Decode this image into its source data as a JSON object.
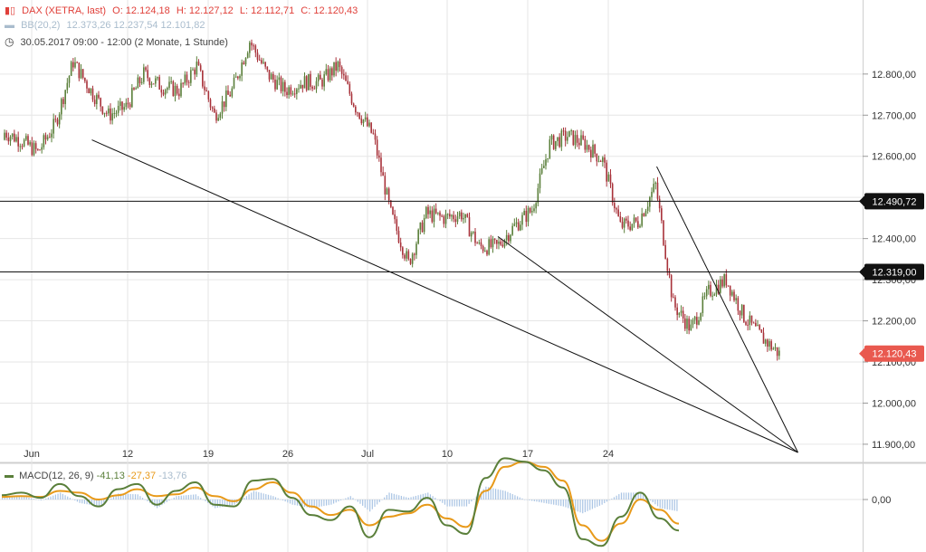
{
  "header": {
    "icon": "candlestick-icon",
    "instrument": "DAX (XETRA, last)",
    "open": "O: 12.124,18",
    "high": "H: 12.127,12",
    "low": "L: 12.112,71",
    "close": "C: 12.120,43",
    "bb_label": "BB(20,2)",
    "bb_values": "12.373,26   12.237,54   12.101,82",
    "clock_icon": "clock-icon",
    "period": "30.05.2017 09:00 - 12:00   (2 Monate, 1 Stunde)"
  },
  "macd_legend": {
    "label": "MACD(12, 26, 9)",
    "macd": "-41,13",
    "signal": "-27,37",
    "hist": "-13,76"
  },
  "colors": {
    "up": "#5a7f3a",
    "down": "#a8323a",
    "macd": "#5a7f3a",
    "signal": "#e89a1a",
    "histogram": "#a9c4e4",
    "last_badge": "#e9594f",
    "level_badge": "#111111",
    "grid": "#e6e6e6"
  },
  "chart_data": [
    {
      "type": "line",
      "subtype": "candlestick",
      "title": "DAX (XETRA, last)",
      "x_ticks": [
        "Jun",
        "12",
        "19",
        "26",
        "Jul",
        "10",
        "17",
        "24"
      ],
      "y_ticks": [
        "12.800,00",
        "12.700,00",
        "12.600,00",
        "12.500,00",
        "12.400,00",
        "12.300,00",
        "12.200,00",
        "12.100,00",
        "12.000,00",
        "11.900,00"
      ],
      "ylim": [
        11880,
        12980
      ],
      "grid": true,
      "horizontal_levels": [
        {
          "value": 12490.72,
          "label": "12.490,72"
        },
        {
          "value": 12319.0,
          "label": "12.319,00"
        }
      ],
      "last_price": {
        "value": 12120.43,
        "label": "12.120,43"
      },
      "price_path": [
        {
          "x": "30.05",
          "y": 12640
        },
        {
          "x": "31.05",
          "y": 12610
        },
        {
          "x": "01.06",
          "y": 12680
        },
        {
          "x": "02.06",
          "y": 12830
        },
        {
          "x": "06.06",
          "y": 12760
        },
        {
          "x": "07.06",
          "y": 12700
        },
        {
          "x": "08.06",
          "y": 12720
        },
        {
          "x": "09.06",
          "y": 12800
        },
        {
          "x": "12.06",
          "y": 12770
        },
        {
          "x": "13.06",
          "y": 12760
        },
        {
          "x": "14.06",
          "y": 12820
        },
        {
          "x": "15.06",
          "y": 12700
        },
        {
          "x": "16.06",
          "y": 12760
        },
        {
          "x": "19.06",
          "y": 12880
        },
        {
          "x": "20.06",
          "y": 12800
        },
        {
          "x": "21.06",
          "y": 12760
        },
        {
          "x": "22.06",
          "y": 12780
        },
        {
          "x": "23.06",
          "y": 12780
        },
        {
          "x": "26.06",
          "y": 12820
        },
        {
          "x": "27.06",
          "y": 12720
        },
        {
          "x": "28.06",
          "y": 12650
        },
        {
          "x": "29.06",
          "y": 12460
        },
        {
          "x": "30.06",
          "y": 12340
        },
        {
          "x": "03.07",
          "y": 12460
        },
        {
          "x": "04.07",
          "y": 12450
        },
        {
          "x": "05.07",
          "y": 12460
        },
        {
          "x": "06.07",
          "y": 12380
        },
        {
          "x": "07.07",
          "y": 12380
        },
        {
          "x": "10.07",
          "y": 12430
        },
        {
          "x": "11.07",
          "y": 12470
        },
        {
          "x": "12.07",
          "y": 12630
        },
        {
          "x": "13.07",
          "y": 12650
        },
        {
          "x": "14.07",
          "y": 12630
        },
        {
          "x": "17.07",
          "y": 12590
        },
        {
          "x": "18.07",
          "y": 12430
        },
        {
          "x": "19.07",
          "y": 12440
        },
        {
          "x": "20.07",
          "y": 12530
        },
        {
          "x": "21.07",
          "y": 12240
        },
        {
          "x": "24.07",
          "y": 12180
        },
        {
          "x": "25.07",
          "y": 12270
        },
        {
          "x": "26.07",
          "y": 12300
        },
        {
          "x": "27.07",
          "y": 12210
        },
        {
          "x": "28.07",
          "y": 12160
        },
        {
          "x": "31.07",
          "y": 12120
        }
      ],
      "trendlines": [
        {
          "from": {
            "x": "07.06",
            "y": 12640
          },
          "to": {
            "x": "02.08",
            "y": 11880
          }
        },
        {
          "from": {
            "x": "10.07",
            "y": 12405
          },
          "to": {
            "x": "02.08",
            "y": 11880
          }
        },
        {
          "from": {
            "x": "21.07",
            "y": 12575
          },
          "to": {
            "x": "02.08",
            "y": 11880
          }
        }
      ]
    },
    {
      "type": "line",
      "title": "MACD(12, 26, 9)",
      "y_ticks": [
        "0,00"
      ],
      "series": [
        {
          "name": "MACD",
          "values": [
            5,
            8,
            2,
            18,
            4,
            -8,
            12,
            18,
            -6,
            10,
            20,
            -6,
            -8,
            22,
            24,
            2,
            -18,
            -24,
            -8,
            -44,
            -12,
            -14,
            2,
            -30,
            -40,
            25,
            48,
            44,
            34,
            14,
            -46,
            -54,
            -20,
            8,
            -22,
            -36
          ]
        },
        {
          "name": "Signal",
          "values": [
            3,
            4,
            3,
            10,
            8,
            0,
            5,
            12,
            4,
            6,
            14,
            4,
            -2,
            12,
            20,
            8,
            -8,
            -18,
            -12,
            -30,
            -20,
            -16,
            -6,
            -22,
            -32,
            10,
            38,
            44,
            38,
            22,
            -30,
            -48,
            -28,
            0,
            -12,
            -28
          ]
        },
        {
          "name": "Histogram",
          "values": [
            2,
            4,
            -1,
            8,
            -4,
            -8,
            7,
            6,
            -10,
            4,
            6,
            -10,
            -6,
            10,
            4,
            -6,
            -10,
            -6,
            4,
            -14,
            8,
            2,
            8,
            -8,
            -8,
            15,
            10,
            0,
            -4,
            -8,
            -16,
            -6,
            8,
            8,
            -10,
            -14
          ]
        }
      ],
      "last_values": {
        "MACD": -41.13,
        "Signal": -27.37,
        "Histogram": -13.76
      }
    }
  ]
}
